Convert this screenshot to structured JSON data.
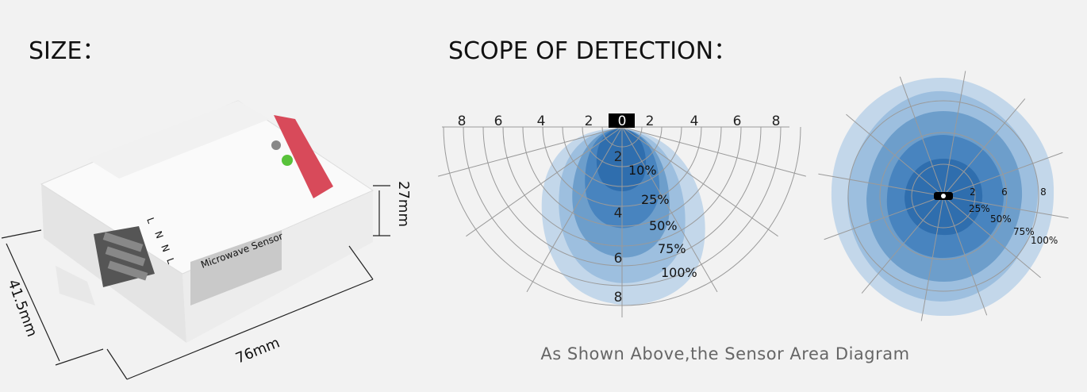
{
  "size_section": {
    "title": "SIZE：",
    "dimensions": {
      "height": "27mm",
      "width": "41.5mm",
      "length": "76mm"
    },
    "device_label": "Microwave Sensor",
    "terminals": [
      "L",
      "N",
      "N",
      "L"
    ]
  },
  "detection_section": {
    "title": "SCOPE OF DETECTION：",
    "side_view": {
      "scale_labels": [
        "8",
        "6",
        "4",
        "2",
        "0",
        "2",
        "4",
        "6",
        "8"
      ],
      "depth_labels": [
        "2",
        "4",
        "6",
        "8"
      ],
      "coverage_labels": [
        "10%",
        "25%",
        "50%",
        "75%",
        "100%"
      ]
    },
    "top_view": {
      "ring_labels": [
        "2",
        "6",
        "8"
      ],
      "coverage_labels": [
        "25%",
        "50%",
        "75%",
        "100%"
      ]
    },
    "caption": "As Shown Above,the Sensor Area Diagram"
  }
}
